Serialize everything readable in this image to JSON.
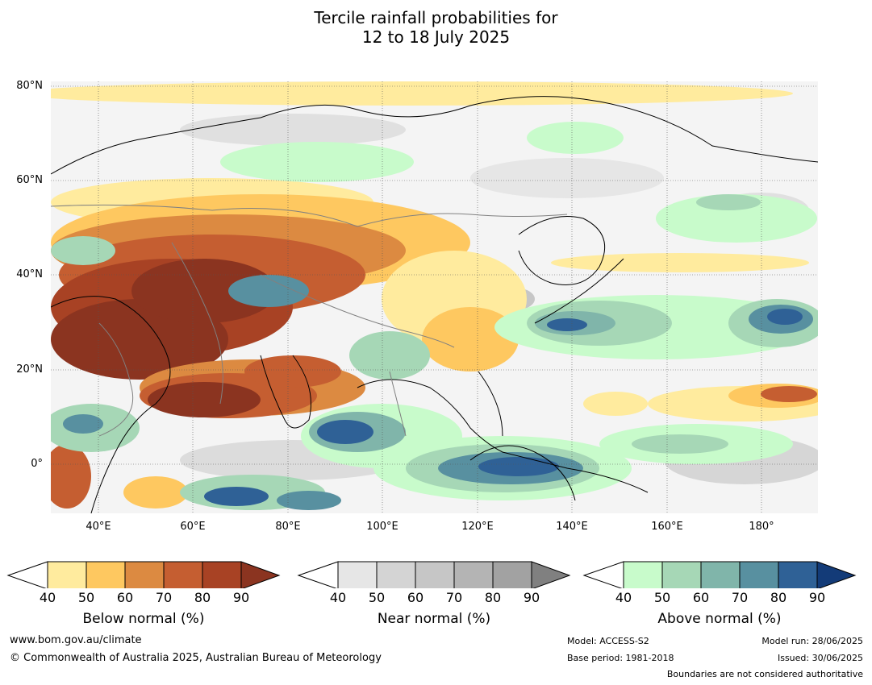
{
  "title": {
    "line1": "Tercile rainfall probabilities for",
    "line2": "12 to 18 July 2025"
  },
  "map": {
    "lat_labels": [
      "80°N",
      "60°N",
      "40°N",
      "20°N",
      "0°"
    ],
    "lon_labels": [
      "40°E",
      "60°E",
      "80°E",
      "100°E",
      "120°E",
      "140°E",
      "160°E",
      "180°"
    ],
    "extent": {
      "lon_min": 30,
      "lon_max": 192,
      "lat_min": -10,
      "lat_max": 81
    }
  },
  "colorbars": [
    {
      "name": "Below normal (%)",
      "ticks": [
        "40",
        "50",
        "60",
        "70",
        "80",
        "90"
      ],
      "colors": [
        "#ffeb9e",
        "#fec860",
        "#dc8a41",
        "#c55e31",
        "#a84224",
        "#8b3420"
      ]
    },
    {
      "name": "Near normal (%)",
      "ticks": [
        "40",
        "50",
        "60",
        "70",
        "80",
        "90"
      ],
      "colors": [
        "#e6e6e6",
        "#d4d4d4",
        "#c6c6c6",
        "#b4b4b4",
        "#a2a2a2",
        "#808080"
      ]
    },
    {
      "name": "Above normal (%)",
      "ticks": [
        "40",
        "50",
        "60",
        "70",
        "80",
        "90"
      ],
      "colors": [
        "#c8fbcb",
        "#a6d7b6",
        "#80b5aa",
        "#5890a0",
        "#2f6196",
        "#133b78"
      ]
    }
  ],
  "footer": {
    "website": "www.bom.gov.au/climate",
    "copyright": "© Commonwealth of Australia 2025, Australian Bureau of Meteorology",
    "model": "Model: ACCESS-S2",
    "base_period": "Base period: 1981-2018",
    "model_run": "Model run: 28/06/2025",
    "issued": "Issued: 30/06/2025",
    "disclaimer": "Boundaries are not considered authoritative"
  }
}
